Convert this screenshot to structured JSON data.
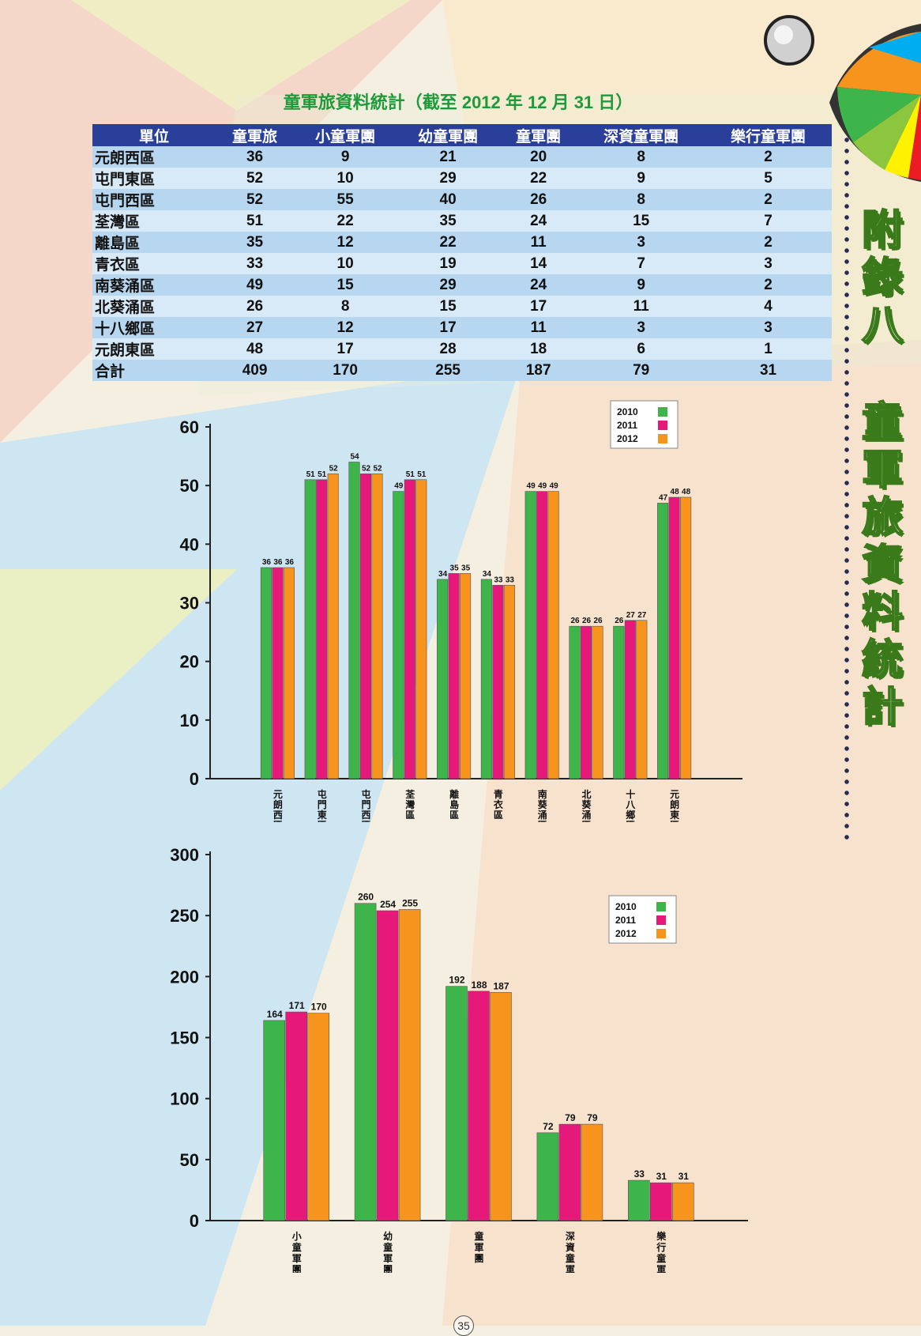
{
  "title": "童軍旅資料統計（截至 2012 年 12 月 31 日）",
  "side_title_1": "附錄八",
  "side_title_2": "童軍旅資料統計",
  "page_number": "35",
  "table": {
    "headers": [
      "單位",
      "童軍旅",
      "小童軍團",
      "幼童軍團",
      "童軍團",
      "深資童軍團",
      "樂行童軍團"
    ],
    "rows": [
      [
        "元朗西區",
        "36",
        "9",
        "21",
        "20",
        "8",
        "2"
      ],
      [
        "屯門東區",
        "52",
        "10",
        "29",
        "22",
        "9",
        "5"
      ],
      [
        "屯門西區",
        "52",
        "55",
        "40",
        "26",
        "8",
        "2"
      ],
      [
        "荃灣區",
        "51",
        "22",
        "35",
        "24",
        "15",
        "7"
      ],
      [
        "離島區",
        "35",
        "12",
        "22",
        "11",
        "3",
        "2"
      ],
      [
        "青衣區",
        "33",
        "10",
        "19",
        "14",
        "7",
        "3"
      ],
      [
        "南葵涌區",
        "49",
        "15",
        "29",
        "24",
        "9",
        "2"
      ],
      [
        "北葵涌區",
        "26",
        "8",
        "15",
        "17",
        "11",
        "4"
      ],
      [
        "十八鄉區",
        "27",
        "12",
        "17",
        "11",
        "3",
        "3"
      ],
      [
        "元朗東區",
        "48",
        "17",
        "28",
        "18",
        "6",
        "1"
      ]
    ],
    "total": [
      "合計",
      "409",
      "170",
      "255",
      "187",
      "79",
      "31"
    ]
  },
  "colors": {
    "2010": "#3db54a",
    "2011": "#e6197a",
    "2012": "#f7941d",
    "table_header": "#2a3f9a",
    "title_green": "#1f9a3a"
  },
  "chart_data": [
    {
      "type": "bar",
      "categories": [
        "元朗西區",
        "屯門東區",
        "屯門西區",
        "荃灣區",
        "離島區",
        "青衣區",
        "南葵涌區",
        "北葵涌區",
        "十八鄉區",
        "元朗東區"
      ],
      "series": [
        {
          "name": "2010",
          "values": [
            36,
            51,
            54,
            49,
            34,
            34,
            49,
            26,
            26,
            47
          ]
        },
        {
          "name": "2011",
          "values": [
            36,
            51,
            52,
            51,
            35,
            33,
            49,
            26,
            27,
            48
          ]
        },
        {
          "name": "2012",
          "values": [
            36,
            52,
            52,
            51,
            35,
            33,
            49,
            26,
            27,
            48
          ]
        }
      ],
      "yticks": [
        "0",
        "10",
        "20",
        "30",
        "40",
        "50",
        "60"
      ],
      "ylim": [
        0,
        60
      ],
      "legend": "top-right",
      "grid": false
    },
    {
      "type": "bar",
      "categories": [
        "小童軍團",
        "幼童軍團",
        "童軍團",
        "深資童軍團",
        "樂行童軍團"
      ],
      "series": [
        {
          "name": "2010",
          "values": [
            164,
            260,
            192,
            72,
            33
          ]
        },
        {
          "name": "2011",
          "values": [
            171,
            254,
            188,
            79,
            31
          ]
        },
        {
          "name": "2012",
          "values": [
            170,
            255,
            187,
            79,
            31
          ]
        }
      ],
      "yticks": [
        "0",
        "50",
        "100",
        "150",
        "200",
        "250",
        "300"
      ],
      "ylim": [
        0,
        300
      ],
      "legend": "top-right",
      "grid": false
    }
  ]
}
